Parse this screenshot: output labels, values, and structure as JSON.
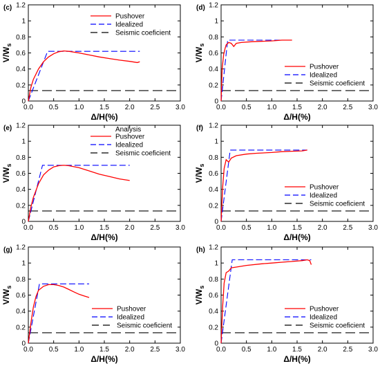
{
  "colors": {
    "pushover": "#ff0000",
    "idealized": "#0000ff",
    "seismic": "#000000"
  },
  "chart_data": [
    {
      "type": "line",
      "panel_label": "(c)",
      "xlabel": "Δ/H(%)",
      "ylabel": "V/W",
      "ylabel_sub": "s",
      "xlim": [
        0,
        3
      ],
      "ylim": [
        0,
        1.2
      ],
      "legend_position": "top-right",
      "legend_title": "",
      "xticks": [
        0,
        0.5,
        1,
        1.5,
        2,
        2.5,
        3
      ],
      "xtick_labels": [
        "0.0",
        "0.5",
        "1.0",
        "1.5",
        "2.0",
        "2.5",
        "3.0"
      ],
      "yticks": [
        0,
        0.2,
        0.4,
        0.6,
        0.8,
        1,
        1.2
      ],
      "ytick_labels": [
        "0",
        "0.2",
        "0.4",
        "0.6",
        "0.8",
        "1",
        "1.2"
      ],
      "series": [
        {
          "name": "Pushover",
          "style": "solid",
          "color_key": "pushover",
          "x": [
            0,
            0.05,
            0.1,
            0.2,
            0.3,
            0.4,
            0.5,
            0.6,
            0.7,
            0.8,
            1.0,
            1.2,
            1.4,
            1.6,
            1.8,
            2.0,
            2.15,
            2.2
          ],
          "y": [
            0,
            0.17,
            0.27,
            0.4,
            0.49,
            0.55,
            0.59,
            0.615,
            0.625,
            0.62,
            0.6,
            0.575,
            0.55,
            0.53,
            0.51,
            0.495,
            0.48,
            0.49
          ]
        },
        {
          "name": "Idealized",
          "style": "dash",
          "color_key": "idealized",
          "x": [
            0,
            0.38,
            2.2
          ],
          "y": [
            0,
            0.62,
            0.62
          ]
        },
        {
          "name": "Seismic coeficient",
          "style": "longdash",
          "color_key": "seismic",
          "x": [
            0,
            3
          ],
          "y": [
            0.13,
            0.13
          ]
        }
      ]
    },
    {
      "type": "line",
      "panel_label": "(d)",
      "xlabel": "Δ/H(%)",
      "ylabel": "V/W",
      "ylabel_sub": "s",
      "xlim": [
        0,
        3
      ],
      "ylim": [
        0,
        1.2
      ],
      "legend_position": "bottom-right",
      "legend_title": "",
      "xticks": [
        0,
        0.5,
        1,
        1.5,
        2,
        2.5,
        3
      ],
      "xtick_labels": [
        "0.0",
        "0.5",
        "1.0",
        "1.5",
        "2.0",
        "2.5",
        "3.0"
      ],
      "yticks": [
        0,
        0.2,
        0.4,
        0.6,
        0.8,
        1,
        1.2
      ],
      "ytick_labels": [
        "0",
        "0.2",
        "0.4",
        "0.6",
        "0.8",
        "1",
        "1.2"
      ],
      "series": [
        {
          "name": "Pushover",
          "style": "solid",
          "color_key": "pushover",
          "x": [
            0,
            0.02,
            0.05,
            0.08,
            0.1,
            0.15,
            0.2,
            0.25,
            0.3,
            0.4,
            0.6,
            0.8,
            1.0,
            1.2,
            1.4
          ],
          "y": [
            0,
            0.4,
            0.58,
            0.66,
            0.7,
            0.73,
            0.72,
            0.68,
            0.72,
            0.73,
            0.74,
            0.745,
            0.75,
            0.76,
            0.76
          ]
        },
        {
          "name": "Idealized",
          "style": "dash",
          "color_key": "idealized",
          "x": [
            0,
            0.13,
            1.4
          ],
          "y": [
            0,
            0.76,
            0.76
          ]
        },
        {
          "name": "Seismic coeficient",
          "style": "longdash",
          "color_key": "seismic",
          "x": [
            0,
            3
          ],
          "y": [
            0.13,
            0.13
          ]
        }
      ]
    },
    {
      "type": "line",
      "panel_label": "(e)",
      "xlabel": "Δ/H(%)",
      "ylabel": "V/W",
      "ylabel_sub": "s",
      "xlim": [
        0,
        3
      ],
      "ylim": [
        0,
        1.2
      ],
      "legend_position": "top-right",
      "legend_title": "Analysis",
      "xticks": [
        0,
        0.5,
        1,
        1.5,
        2,
        2.5,
        3
      ],
      "xtick_labels": [
        "0.0",
        "0.5",
        "1.0",
        "1.5",
        "2.0",
        "2.5",
        "3.0"
      ],
      "yticks": [
        0,
        0.2,
        0.4,
        0.6,
        0.8,
        1,
        1.2
      ],
      "ytick_labels": [
        "0",
        "0.2",
        "0.4",
        "0.6",
        "0.8",
        "1",
        "1.2"
      ],
      "series": [
        {
          "name": "Pushover",
          "style": "solid",
          "color_key": "pushover",
          "x": [
            0,
            0.05,
            0.1,
            0.2,
            0.3,
            0.4,
            0.5,
            0.6,
            0.7,
            0.8,
            1.0,
            1.2,
            1.4,
            1.6,
            1.8,
            2.0
          ],
          "y": [
            0,
            0.18,
            0.3,
            0.47,
            0.58,
            0.64,
            0.68,
            0.695,
            0.7,
            0.695,
            0.67,
            0.63,
            0.59,
            0.56,
            0.53,
            0.51
          ]
        },
        {
          "name": "Idealized",
          "style": "dash",
          "color_key": "idealized",
          "x": [
            0,
            0.28,
            2.0
          ],
          "y": [
            0,
            0.7,
            0.7
          ]
        },
        {
          "name": "Seismic coeficient",
          "style": "longdash",
          "color_key": "seismic",
          "x": [
            0,
            3
          ],
          "y": [
            0.13,
            0.13
          ]
        }
      ]
    },
    {
      "type": "line",
      "panel_label": "(f)",
      "xlabel": "Δ/H(%)",
      "ylabel": "V/W",
      "ylabel_sub": "s",
      "xlim": [
        0,
        3
      ],
      "ylim": [
        0,
        1.2
      ],
      "legend_position": "bottom-right",
      "legend_title": "",
      "xticks": [
        0,
        0.5,
        1,
        1.5,
        2,
        2.5,
        3
      ],
      "xtick_labels": [
        "0.0",
        "0.5",
        "1.0",
        "1.5",
        "2.0",
        "2.5",
        "3.0"
      ],
      "yticks": [
        0,
        0.2,
        0.4,
        0.6,
        0.8,
        1,
        1.2
      ],
      "ytick_labels": [
        "0",
        "0.2",
        "0.4",
        "0.6",
        "0.8",
        "1",
        "1.2"
      ],
      "series": [
        {
          "name": "Pushover",
          "style": "solid",
          "color_key": "pushover",
          "x": [
            0,
            0.03,
            0.06,
            0.1,
            0.15,
            0.2,
            0.3,
            0.5,
            0.7,
            1.0,
            1.2,
            1.4,
            1.6,
            1.7
          ],
          "y": [
            0,
            0.42,
            0.66,
            0.77,
            0.74,
            0.79,
            0.82,
            0.84,
            0.85,
            0.86,
            0.87,
            0.875,
            0.88,
            0.89
          ]
        },
        {
          "name": "Idealized",
          "style": "dash",
          "color_key": "idealized",
          "x": [
            0,
            0.18,
            1.7
          ],
          "y": [
            0,
            0.89,
            0.89
          ]
        },
        {
          "name": "Seismic coeficient",
          "style": "longdash",
          "color_key": "seismic",
          "x": [
            0,
            3
          ],
          "y": [
            0.13,
            0.13
          ]
        }
      ]
    },
    {
      "type": "line",
      "panel_label": "(g)",
      "xlabel": "Δ/H(%)",
      "ylabel": "V/W",
      "ylabel_sub": "s",
      "xlim": [
        0,
        3
      ],
      "ylim": [
        0,
        1.2
      ],
      "legend_position": "bottom-right",
      "legend_title": "",
      "xticks": [
        0,
        0.5,
        1,
        1.5,
        2,
        2.5,
        3
      ],
      "xtick_labels": [
        "0.0",
        "0.5",
        "1.0",
        "1.5",
        "2.0",
        "2.5",
        "3.0"
      ],
      "yticks": [
        0,
        0.2,
        0.4,
        0.6,
        0.8,
        1,
        1.2
      ],
      "ytick_labels": [
        "0",
        "0.2",
        "0.4",
        "0.6",
        "0.8",
        "1",
        "1.2"
      ],
      "series": [
        {
          "name": "Pushover",
          "style": "solid",
          "color_key": "pushover",
          "x": [
            0,
            0.05,
            0.1,
            0.15,
            0.2,
            0.3,
            0.4,
            0.5,
            0.6,
            0.7,
            0.8,
            0.9,
            1.0,
            1.1,
            1.2
          ],
          "y": [
            0,
            0.25,
            0.45,
            0.58,
            0.66,
            0.71,
            0.73,
            0.73,
            0.72,
            0.7,
            0.67,
            0.64,
            0.61,
            0.59,
            0.57
          ]
        },
        {
          "name": "Idealized",
          "style": "dash",
          "color_key": "idealized",
          "x": [
            0,
            0.22,
            1.2
          ],
          "y": [
            0,
            0.74,
            0.74
          ]
        },
        {
          "name": "Seismic coeficient",
          "style": "longdash",
          "color_key": "seismic",
          "x": [
            0,
            3
          ],
          "y": [
            0.13,
            0.13
          ]
        }
      ]
    },
    {
      "type": "line",
      "panel_label": "(h)",
      "xlabel": "Δ/H(%)",
      "ylabel": "V/W",
      "ylabel_sub": "s",
      "xlim": [
        0,
        3
      ],
      "ylim": [
        0,
        1.2
      ],
      "legend_position": "bottom-right",
      "legend_title": "",
      "xticks": [
        0,
        0.5,
        1,
        1.5,
        2,
        2.5,
        3
      ],
      "xtick_labels": [
        "0.0",
        "0.5",
        "1.0",
        "1.5",
        "2.0",
        "2.5",
        "3.0"
      ],
      "yticks": [
        0,
        0.2,
        0.4,
        0.6,
        0.8,
        1,
        1.2
      ],
      "ytick_labels": [
        "0",
        "0.2",
        "0.4",
        "0.6",
        "0.8",
        "1",
        "1.2"
      ],
      "series": [
        {
          "name": "Pushover",
          "style": "solid",
          "color_key": "pushover",
          "x": [
            0,
            0.03,
            0.06,
            0.1,
            0.15,
            0.2,
            0.3,
            0.5,
            0.8,
            1.0,
            1.2,
            1.4,
            1.6,
            1.7,
            1.75,
            1.78
          ],
          "y": [
            0,
            0.45,
            0.75,
            0.88,
            0.9,
            0.94,
            0.95,
            0.97,
            0.99,
            1.0,
            1.01,
            1.02,
            1.03,
            1.04,
            1.03,
            0.98
          ]
        },
        {
          "name": "Idealized",
          "style": "dash",
          "color_key": "idealized",
          "x": [
            0,
            0.22,
            1.78
          ],
          "y": [
            0,
            1.04,
            1.04
          ]
        },
        {
          "name": "Seismic coeficient",
          "style": "longdash",
          "color_key": "seismic",
          "x": [
            0,
            3
          ],
          "y": [
            0.13,
            0.13
          ]
        }
      ]
    }
  ]
}
